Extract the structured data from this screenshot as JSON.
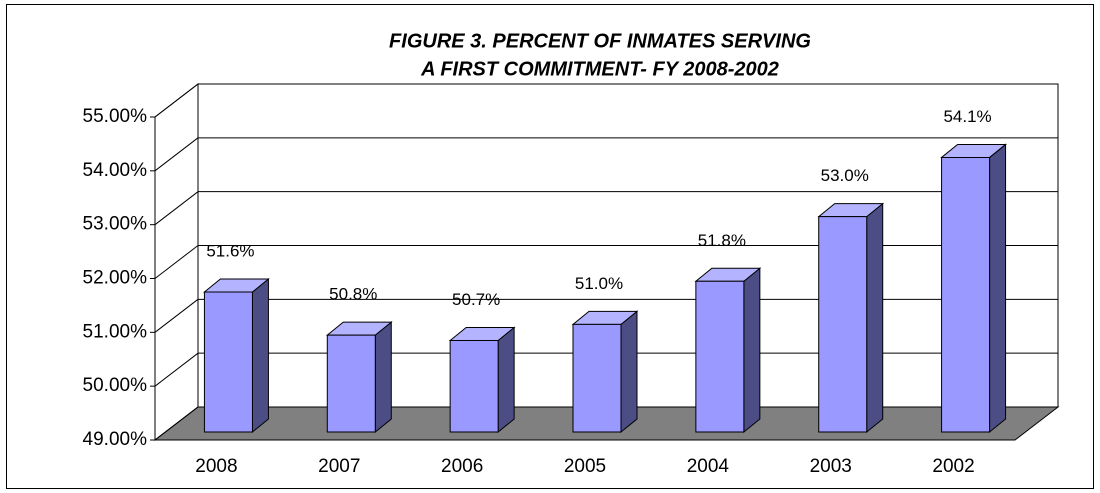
{
  "chart_data": {
    "type": "bar3d",
    "title": [
      "FIGURE 3. PERCENT OF INMATES SERVING",
      "A FIRST COMMITMENT- FY 2008-2002"
    ],
    "categories": [
      "2008",
      "2007",
      "2006",
      "2005",
      "2004",
      "2003",
      "2002"
    ],
    "values": [
      51.6,
      50.8,
      50.7,
      51.0,
      51.8,
      53.0,
      54.1
    ],
    "value_labels": [
      "51.6%",
      "50.8%",
      "50.7%",
      "51.0%",
      "51.8%",
      "53.0%",
      "54.1%"
    ],
    "color": "#9999ff",
    "ylim": [
      49,
      55
    ],
    "yticks": [
      {
        "value": 49,
        "label": "49.00%"
      },
      {
        "value": 50,
        "label": "50.00%"
      },
      {
        "value": 51,
        "label": "51.00%"
      },
      {
        "value": 52,
        "label": "52.00%"
      },
      {
        "value": 53,
        "label": "53.00%"
      },
      {
        "value": 54,
        "label": "54.00%"
      },
      {
        "value": 55,
        "label": "55.00%"
      }
    ],
    "grid": true
  }
}
